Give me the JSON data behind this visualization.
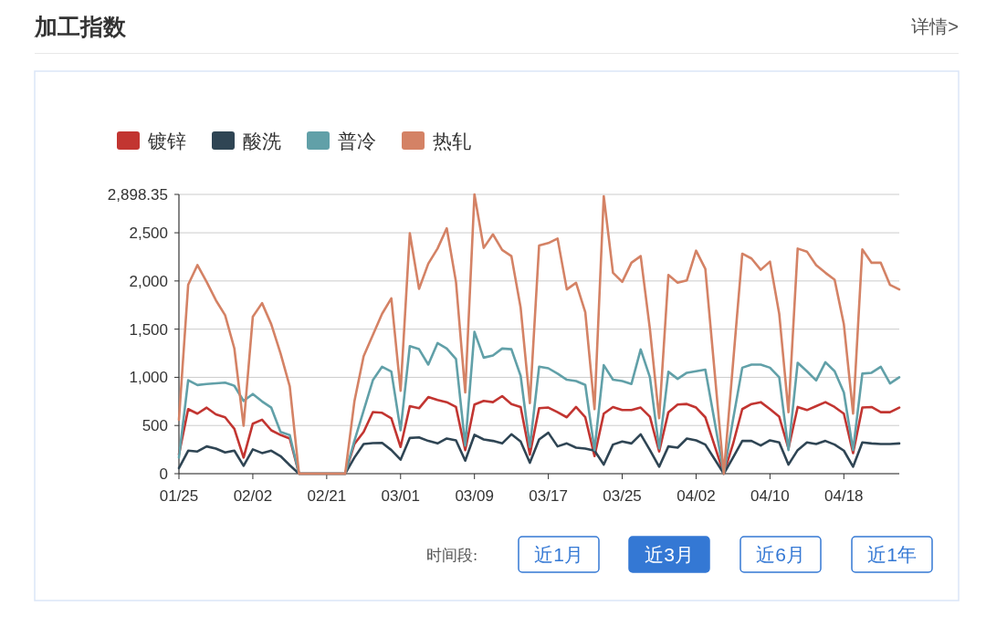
{
  "chart_data": {
    "type": "line",
    "title": "加工指数",
    "categories": [
      "01/25",
      null,
      null,
      null,
      null,
      null,
      null,
      null,
      "02/02",
      null,
      null,
      null,
      null,
      null,
      null,
      null,
      "02/21",
      null,
      null,
      null,
      null,
      null,
      null,
      null,
      "03/01",
      null,
      null,
      null,
      null,
      null,
      null,
      null,
      "03/09",
      null,
      null,
      null,
      null,
      null,
      null,
      null,
      "03/17",
      null,
      null,
      null,
      null,
      null,
      null,
      null,
      "03/25",
      null,
      null,
      null,
      null,
      null,
      null,
      null,
      "04/02",
      null,
      null,
      null,
      null,
      null,
      null,
      null,
      "04/10",
      null,
      null,
      null,
      null,
      null,
      null,
      null,
      "04/18",
      null,
      null,
      null,
      null,
      null,
      null
    ],
    "series": [
      {
        "name": "镀锌",
        "color": "#c23531",
        "values": [
          200,
          670,
          623,
          685,
          616,
          585,
          465,
          167,
          519,
          560,
          450,
          402,
          365,
          0,
          0,
          0,
          0,
          0,
          0,
          308,
          434,
          640,
          632,
          575,
          277,
          701,
          679,
          795,
          764,
          742,
          692,
          245,
          717,
          755,
          742,
          805,
          723,
          692,
          198,
          679,
          686,
          638,
          585,
          692,
          585,
          182,
          623,
          692,
          660,
          660,
          686,
          591,
          230,
          638,
          717,
          723,
          686,
          585,
          292,
          0,
          308,
          670,
          723,
          742,
          670,
          591,
          261,
          692,
          660,
          701,
          742,
          692,
          623,
          214,
          686,
          692,
          638,
          638,
          686
        ]
      },
      {
        "name": "酸洗",
        "color": "#2f4554",
        "values": [
          57,
          239,
          230,
          283,
          261,
          220,
          239,
          82,
          252,
          214,
          239,
          182,
          88,
          0,
          0,
          0,
          0,
          0,
          0,
          167,
          308,
          318,
          320,
          245,
          145,
          371,
          377,
          340,
          314,
          365,
          346,
          135,
          403,
          355,
          340,
          314,
          409,
          333,
          113,
          355,
          425,
          283,
          314,
          270,
          261,
          239,
          94,
          302,
          333,
          314,
          409,
          245,
          72,
          283,
          270,
          365,
          346,
          302,
          151,
          0,
          167,
          340,
          340,
          292,
          346,
          324,
          94,
          245,
          324,
          308,
          340,
          302,
          239,
          72,
          324,
          314,
          308,
          308,
          314
        ]
      },
      {
        "name": "普冷",
        "color": "#61a0a8",
        "values": [
          167,
          970,
          920,
          930,
          937,
          945,
          912,
          755,
          827,
          750,
          685,
          434,
          400,
          0,
          0,
          0,
          0,
          0,
          0,
          340,
          655,
          970,
          1110,
          1060,
          450,
          1324,
          1292,
          1132,
          1355,
          1299,
          1189,
          292,
          1472,
          1204,
          1226,
          1299,
          1292,
          1016,
          277,
          1110,
          1094,
          1038,
          975,
          962,
          921,
          245,
          1126,
          975,
          962,
          931,
          1289,
          1000,
          261,
          1057,
          984,
          1047,
          1063,
          1079,
          544,
          0,
          560,
          1100,
          1132,
          1132,
          1100,
          1000,
          245,
          1151,
          1063,
          968,
          1157,
          1063,
          843,
          245,
          1038,
          1047,
          1110,
          937,
          1000
        ]
      },
      {
        "name": "热轧",
        "color": "#d48265",
        "values": [
          560,
          1960,
          2165,
          1990,
          1800,
          1645,
          1300,
          497,
          1630,
          1770,
          1550,
          1250,
          905,
          0,
          0,
          0,
          0,
          0,
          0,
          750,
          1220,
          1440,
          1660,
          1820,
          860,
          2495,
          1918,
          2180,
          2336,
          2547,
          1990,
          843,
          2898,
          2343,
          2484,
          2321,
          2258,
          1723,
          733,
          2368,
          2393,
          2440,
          1912,
          1981,
          1676,
          670,
          2880,
          2085,
          1990,
          2189,
          2258,
          1500,
          575,
          2063,
          1981,
          2006,
          2314,
          2126,
          1063,
          0,
          1145,
          2283,
          2233,
          2116,
          2201,
          1660,
          638,
          2336,
          2305,
          2164,
          2085,
          2013,
          1550,
          623,
          2327,
          2189,
          2189,
          1959,
          1912
        ]
      }
    ],
    "ylim": [
      0,
      2898.35
    ],
    "yticks": [
      0,
      500,
      {
        "value": 1000,
        "label": "1,000"
      },
      {
        "value": 1500,
        "label": "1,500"
      },
      {
        "value": 2000,
        "label": "2,000"
      },
      {
        "value": 2500,
        "label": "2,500"
      },
      {
        "value": 2898.35,
        "label": "2,898.35"
      }
    ],
    "grid": "y",
    "legend": "top left",
    "annotations": [
      "详情>",
      "时间段:",
      "近1月",
      "近3月",
      "近6月",
      "近1年"
    ]
  }
}
